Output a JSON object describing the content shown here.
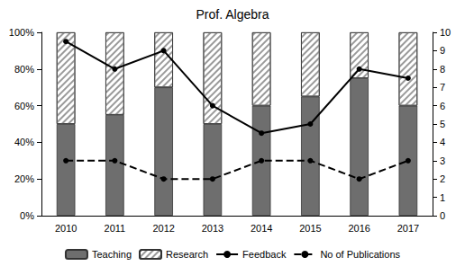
{
  "chart_data": {
    "type": "bar",
    "title": "Prof. Algebra",
    "categories": [
      "2010",
      "2011",
      "2012",
      "2013",
      "2014",
      "2015",
      "2016",
      "2017"
    ],
    "stacked": true,
    "grid": false,
    "legend": "bottom",
    "ylim": [
      0,
      100
    ],
    "yticks": [
      {
        "value": 0,
        "label": "0%"
      },
      {
        "value": 20,
        "label": "20%"
      },
      {
        "value": 40,
        "label": "40%"
      },
      {
        "value": 60,
        "label": "60%"
      },
      {
        "value": 80,
        "label": "80%"
      },
      {
        "value": 100,
        "label": "100%"
      }
    ],
    "y2lim": [
      0,
      10
    ],
    "y2ticks": [
      0,
      1,
      2,
      3,
      4,
      5,
      6,
      7,
      8,
      9,
      10
    ],
    "series": [
      {
        "name": "Teaching",
        "type": "bar",
        "color": "#6e6e6e",
        "values": [
          50,
          55,
          70,
          50,
          60,
          65,
          75,
          60
        ]
      },
      {
        "name": "Research",
        "type": "bar",
        "color": "#9a9a9a",
        "values": [
          50,
          45,
          30,
          50,
          40,
          35,
          25,
          40
        ]
      },
      {
        "name": "Feedback",
        "type": "line",
        "axis": "y2",
        "color": "#000000",
        "marker": "circle",
        "line_style": "solid",
        "values": [
          9.5,
          8,
          9,
          6,
          4.5,
          5,
          8,
          7.5
        ]
      },
      {
        "name": "No of Publications",
        "type": "line",
        "axis": "y2",
        "color": "#000000",
        "marker": "circle",
        "line_style": "dashed",
        "values": [
          3,
          3,
          2,
          2,
          3,
          3,
          2,
          3
        ]
      }
    ]
  }
}
